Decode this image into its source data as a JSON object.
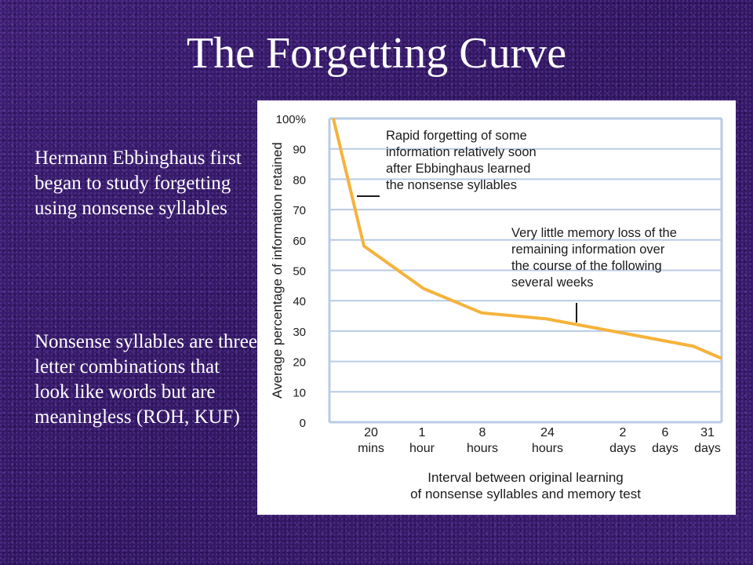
{
  "slide": {
    "title": "The Forgetting Curve",
    "paragraphs": [
      "Hermann Ebbinghaus first began to study forgetting using nonsense syllables",
      "Nonsense syllables are three letter combinations that look like words but are meaningless (ROH, KUF)"
    ]
  },
  "colors": {
    "curve": "#F5B33B",
    "grid": "#B9CBE6",
    "text": "#1b1b1b"
  },
  "chart_data": {
    "type": "line",
    "title": "",
    "ylabel": "Average percentage of information retained",
    "xlabel_lines": [
      "Interval between original learning",
      "of nonsense syllables and memory test"
    ],
    "ylim": [
      0,
      100
    ],
    "yticks": [
      "0",
      "10",
      "20",
      "30",
      "40",
      "50",
      "60",
      "70",
      "80",
      "90",
      "100%"
    ],
    "x_categories": [
      [
        "20",
        "mins"
      ],
      [
        "1",
        "hour"
      ],
      [
        "8",
        "hours"
      ],
      [
        "24",
        "hours"
      ],
      [
        "2",
        "days"
      ],
      [
        "6",
        "days"
      ],
      [
        "31",
        "days"
      ]
    ],
    "grid": true,
    "series": [
      {
        "x": [
          "0",
          "20 mins",
          "1 hour",
          "8 hours",
          "24 hours",
          "2 days",
          "6 days",
          "31 days"
        ],
        "values": [
          100,
          58,
          44,
          36,
          34,
          28,
          25,
          21
        ]
      }
    ],
    "annotations": [
      [
        "Rapid forgetting of some",
        "information relatively soon",
        "after Ebbinghaus learned",
        "the nonsense syllables"
      ],
      [
        "Very little memory loss of the",
        "remaining information over",
        "the course of the following",
        "several weeks"
      ]
    ]
  }
}
